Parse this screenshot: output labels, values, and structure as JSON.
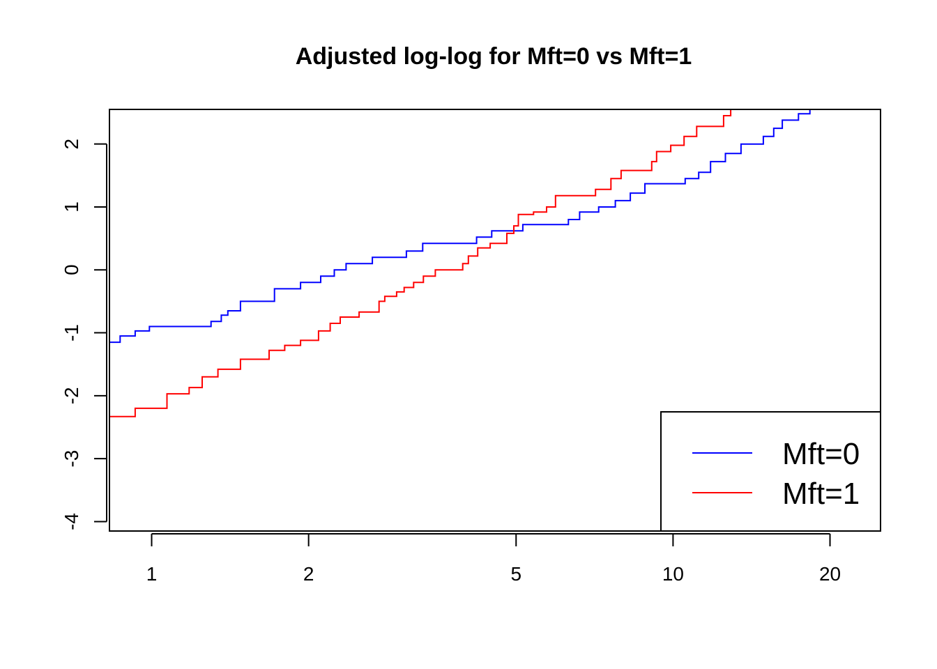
{
  "chart_data": {
    "type": "line",
    "title": "Adjusted log-log for Mft=0 vs Mft=1",
    "xlabel": "",
    "ylabel": "",
    "x_scale": "log",
    "xlim": [
      0.83,
      25
    ],
    "ylim": [
      -4.15,
      2.55
    ],
    "x_ticks": [
      1,
      2,
      5,
      10,
      20
    ],
    "y_ticks": [
      -4,
      -3,
      -2,
      -1,
      0,
      1,
      2
    ],
    "grid": false,
    "legend_position": "bottom-right",
    "step": true,
    "series": [
      {
        "name": "Mft=0",
        "color": "#0000ff",
        "points": [
          [
            0.83,
            -1.15
          ],
          [
            0.87,
            -1.05
          ],
          [
            0.93,
            -0.97
          ],
          [
            0.99,
            -0.9
          ],
          [
            1.3,
            -0.82
          ],
          [
            1.36,
            -0.72
          ],
          [
            1.4,
            -0.65
          ],
          [
            1.48,
            -0.5
          ],
          [
            1.72,
            -0.3
          ],
          [
            1.93,
            -0.2
          ],
          [
            2.11,
            -0.1
          ],
          [
            2.24,
            0.0
          ],
          [
            2.36,
            0.1
          ],
          [
            2.65,
            0.2
          ],
          [
            3.08,
            0.3
          ],
          [
            3.31,
            0.42
          ],
          [
            4.2,
            0.52
          ],
          [
            4.49,
            0.62
          ],
          [
            5.15,
            0.72
          ],
          [
            6.3,
            0.8
          ],
          [
            6.62,
            0.92
          ],
          [
            7.2,
            1.0
          ],
          [
            7.75,
            1.1
          ],
          [
            8.28,
            1.22
          ],
          [
            8.83,
            1.37
          ],
          [
            10.55,
            1.45
          ],
          [
            11.2,
            1.55
          ],
          [
            11.8,
            1.72
          ],
          [
            12.6,
            1.85
          ],
          [
            13.5,
            2.0
          ],
          [
            14.9,
            2.12
          ],
          [
            15.6,
            2.25
          ],
          [
            16.2,
            2.38
          ],
          [
            17.4,
            2.48
          ],
          [
            18.3,
            2.58
          ]
        ]
      },
      {
        "name": "Mft=1",
        "color": "#ff0000",
        "points": [
          [
            0.83,
            -2.33
          ],
          [
            0.93,
            -2.2
          ],
          [
            1.07,
            -1.97
          ],
          [
            1.18,
            -1.87
          ],
          [
            1.25,
            -1.7
          ],
          [
            1.34,
            -1.58
          ],
          [
            1.48,
            -1.42
          ],
          [
            1.68,
            -1.28
          ],
          [
            1.8,
            -1.2
          ],
          [
            1.93,
            -1.12
          ],
          [
            2.09,
            -0.97
          ],
          [
            2.2,
            -0.85
          ],
          [
            2.3,
            -0.75
          ],
          [
            2.5,
            -0.67
          ],
          [
            2.73,
            -0.5
          ],
          [
            2.8,
            -0.42
          ],
          [
            2.95,
            -0.35
          ],
          [
            3.05,
            -0.28
          ],
          [
            3.18,
            -0.2
          ],
          [
            3.32,
            -0.1
          ],
          [
            3.5,
            0.0
          ],
          [
            3.95,
            0.1
          ],
          [
            4.05,
            0.22
          ],
          [
            4.22,
            0.35
          ],
          [
            4.46,
            0.42
          ],
          [
            4.8,
            0.58
          ],
          [
            4.95,
            0.7
          ],
          [
            5.05,
            0.88
          ],
          [
            5.4,
            0.92
          ],
          [
            5.72,
            1.0
          ],
          [
            5.95,
            1.18
          ],
          [
            7.1,
            1.28
          ],
          [
            7.6,
            1.45
          ],
          [
            7.95,
            1.58
          ],
          [
            9.1,
            1.72
          ],
          [
            9.3,
            1.88
          ],
          [
            9.9,
            1.98
          ],
          [
            10.5,
            2.12
          ],
          [
            11.1,
            2.28
          ],
          [
            12.5,
            2.45
          ],
          [
            12.9,
            2.58
          ]
        ]
      }
    ]
  }
}
